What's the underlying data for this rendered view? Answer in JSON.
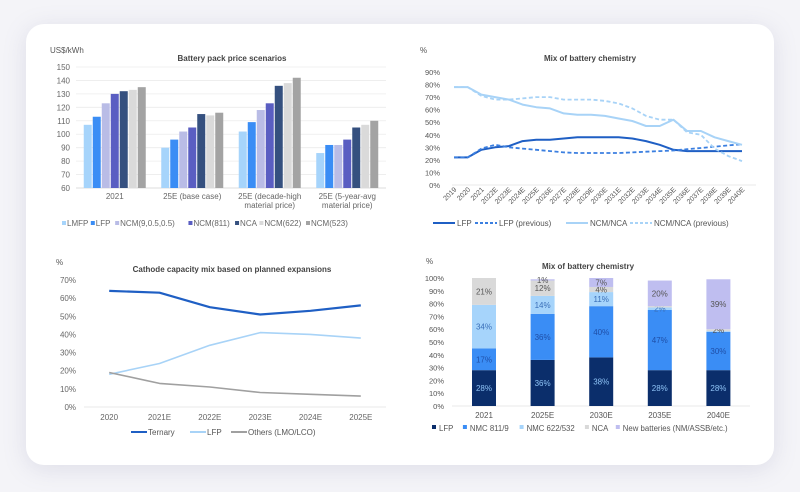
{
  "chart_data": [
    {
      "type": "bar",
      "title": "Battery pack price scenarios",
      "ylabel": "US$/kWh",
      "ylim": [
        60,
        150
      ],
      "yticks": [
        60,
        70,
        80,
        90,
        100,
        110,
        120,
        130,
        140,
        150
      ],
      "categories": [
        [
          "2021"
        ],
        [
          "25E (base case)"
        ],
        [
          "25E (decade-high",
          "material price)"
        ],
        [
          "25E (5-year-avg",
          "material price)"
        ]
      ],
      "grid": true,
      "legend": "bottom",
      "series": [
        {
          "name": "LMFP",
          "color": "#a6d4fb",
          "values": [
            107,
            90,
            102,
            86
          ]
        },
        {
          "name": "LFP",
          "color": "#3a8df5",
          "values": [
            113,
            96,
            109,
            92
          ]
        },
        {
          "name": "NCM(9,0.5,0.5)",
          "color": "#b9bce6",
          "values": [
            123,
            102,
            118,
            92
          ]
        },
        {
          "name": "NCM(811)",
          "color": "#5a5ec2",
          "values": [
            130,
            105,
            123,
            96
          ]
        },
        {
          "name": "NCA",
          "color": "#35507f",
          "values": [
            132,
            115,
            136,
            105
          ]
        },
        {
          "name": "NCM(622)",
          "color": "#dadada",
          "values": [
            133,
            114,
            138,
            107
          ]
        },
        {
          "name": "NCM(523)",
          "color": "#a3a3a3",
          "values": [
            135,
            116,
            142,
            110
          ]
        }
      ]
    },
    {
      "type": "line",
      "title": "Mix of battery chemistry",
      "ylabel": "%",
      "ylim": [
        0,
        90
      ],
      "yticks": [
        "0%",
        "10%",
        "20%",
        "30%",
        "40%",
        "50%",
        "60%",
        "70%",
        "80%",
        "90%"
      ],
      "x": [
        "2019",
        "2020",
        "2021",
        "2022E",
        "2023E",
        "2024E",
        "2025E",
        "2026E",
        "2027E",
        "2028E",
        "2029E",
        "2030E",
        "2031E",
        "2032E",
        "2033E",
        "2034E",
        "2035E",
        "2036E",
        "2037E",
        "2038E",
        "2039E",
        "2040E"
      ],
      "legend": "bottom",
      "series": [
        {
          "name": "LFP",
          "color": "#1f5fc4",
          "style": "solid",
          "values": [
            22,
            22,
            28,
            30,
            31,
            35,
            36,
            36,
            37,
            38,
            38,
            38,
            38,
            37,
            35,
            32,
            28,
            27,
            27,
            27,
            27,
            27
          ]
        },
        {
          "name": "LFP (previous)",
          "color": "#3b7fe0",
          "style": "dashed",
          "values": [
            22,
            22,
            29,
            32,
            30,
            29,
            28,
            27,
            26,
            25.5,
            25.5,
            25.5,
            25.5,
            26,
            26.5,
            27,
            27.5,
            28.5,
            29.5,
            30.5,
            31.5,
            32.5
          ]
        },
        {
          "name": "NCM/NCA",
          "color": "#a8d3f7",
          "style": "solid",
          "values": [
            78,
            78,
            72,
            70,
            68,
            64,
            62,
            61,
            57,
            56,
            56,
            55,
            53,
            51,
            47,
            47,
            52,
            43,
            43,
            38,
            35,
            32
          ]
        },
        {
          "name": "NCM/NCA (previous)",
          "color": "#a8d3f7",
          "style": "dashed",
          "values": [
            78,
            78,
            71,
            68,
            68,
            69,
            70,
            70,
            68,
            68,
            68,
            67,
            65,
            61,
            55,
            52,
            52,
            42,
            40,
            29,
            23,
            19
          ]
        }
      ]
    },
    {
      "type": "line",
      "title": "Cathode capacity mix based on planned expansions",
      "ylabel": "%",
      "ylim": [
        0,
        70
      ],
      "yticks": [
        "0%",
        "10%",
        "20%",
        "30%",
        "40%",
        "50%",
        "60%",
        "70%"
      ],
      "x": [
        "2020",
        "2021E",
        "2022E",
        "2023E",
        "2024E",
        "2025E"
      ],
      "legend": "bottom",
      "series": [
        {
          "name": "Ternary",
          "color": "#1f5fc4",
          "values": [
            64,
            63,
            55,
            51,
            53,
            56
          ]
        },
        {
          "name": "LFP",
          "color": "#a8d3f7",
          "values": [
            18,
            24,
            34,
            41,
            40,
            38
          ]
        },
        {
          "name": "Others (LMO/LCO)",
          "color": "#a0a0a0",
          "values": [
            19,
            13,
            11,
            8,
            7,
            6
          ]
        }
      ]
    },
    {
      "type": "bar",
      "stacked": true,
      "title": "Mix of battery chemistry",
      "ylabel": "%",
      "ylim": [
        0,
        100
      ],
      "yticks": [
        "0%",
        "10%",
        "20%",
        "30%",
        "40%",
        "50%",
        "60%",
        "70%",
        "80%",
        "90%",
        "100%"
      ],
      "categories": [
        "2021",
        "2025E",
        "2030E",
        "2035E",
        "2040E"
      ],
      "legend": "bottom",
      "series": [
        {
          "name": "LFP",
          "color": "#0b2e6b",
          "labelColor": "#8fc4f7",
          "values": [
            28,
            36,
            38,
            28,
            28
          ],
          "labels": [
            "28%",
            "36%",
            "38%",
            "28%",
            "28%"
          ]
        },
        {
          "name": "NMC 811/9",
          "color": "#3a8df5",
          "labelColor": "#1f4fa8",
          "values": [
            17,
            36,
            40,
            47,
            30
          ],
          "labels": [
            "17%",
            "36%",
            "40%",
            "47%",
            "30%"
          ]
        },
        {
          "name": "NMC 622/532",
          "color": "#a6d4fb",
          "labelColor": "#3a6fb8",
          "values": [
            34,
            14,
            11,
            2,
            0.5
          ],
          "labels": [
            "34%",
            "14%",
            "11%",
            "2%",
            ""
          ]
        },
        {
          "name": "NCA",
          "color": "#d9d9d9",
          "labelColor": "#555555",
          "values": [
            21,
            12,
            4,
            1,
            1.5
          ],
          "labels": [
            "21%",
            "12%",
            "4%",
            "",
            "2%"
          ]
        },
        {
          "name": "New batteries (NM/ASSB/etc.)",
          "color": "#bfbef0",
          "labelColor": "#555555",
          "values": [
            0,
            1,
            7,
            20,
            39
          ],
          "labels": [
            "",
            "1%",
            "7%",
            "20%",
            "39%"
          ]
        }
      ]
    }
  ]
}
